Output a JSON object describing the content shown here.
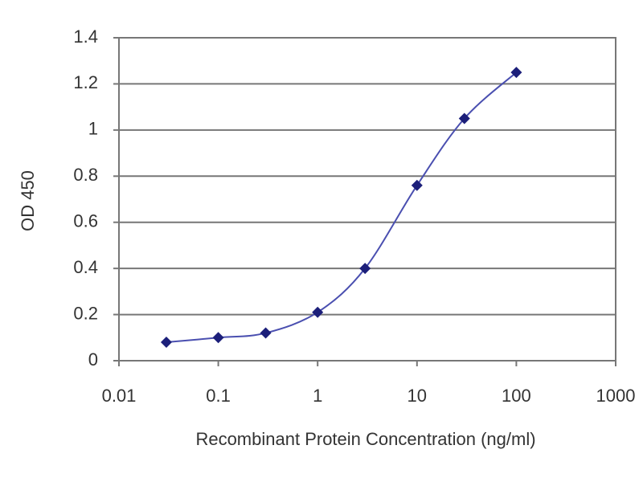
{
  "chart_data": {
    "type": "line",
    "xlabel": "Recombinant Protein Concentration (ng/ml)",
    "ylabel": "OD 450",
    "xscale": "log",
    "x": [
      0.03,
      0.1,
      0.3,
      1,
      3,
      10,
      30,
      100
    ],
    "series": [
      {
        "color": "#1c1f7a",
        "values": [
          0.08,
          0.1,
          0.12,
          0.21,
          0.4,
          0.76,
          1.05,
          1.25
        ]
      }
    ],
    "xlim": [
      0.01,
      1000
    ],
    "xticks": [
      0.01,
      0.1,
      1,
      10,
      100,
      1000
    ],
    "ylim": [
      0,
      1.4
    ],
    "yticks": [
      0,
      0.2,
      0.4,
      0.6,
      0.8,
      1,
      1.2,
      1.4
    ],
    "grid": true
  }
}
